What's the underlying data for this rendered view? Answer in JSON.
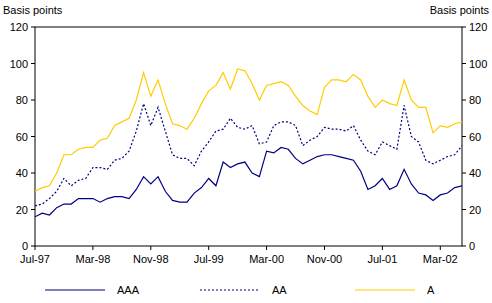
{
  "chart_data": {
    "type": "line",
    "y_label": "Basis points",
    "y2_label": "Basis points",
    "categories": [
      "Jul-97",
      null,
      null,
      null,
      null,
      null,
      null,
      null,
      "Mar-98",
      null,
      null,
      null,
      null,
      null,
      null,
      null,
      "Nov-98",
      null,
      null,
      null,
      null,
      null,
      null,
      null,
      "Jul-99",
      null,
      null,
      null,
      null,
      null,
      null,
      null,
      "Mar-00",
      null,
      null,
      null,
      null,
      null,
      null,
      null,
      "Nov-00",
      null,
      null,
      null,
      null,
      null,
      null,
      null,
      "Jul-01",
      null,
      null,
      null,
      null,
      null,
      null,
      null,
      "Mar-02",
      null,
      null,
      null
    ],
    "series": [
      {
        "name": "AAA",
        "color": "#000080",
        "line_style": "solid",
        "values": [
          16,
          18,
          17,
          21,
          23,
          23,
          26,
          26,
          26,
          24,
          26,
          27,
          27,
          26,
          31,
          38,
          34,
          38,
          30,
          25,
          24,
          24,
          29,
          32,
          37,
          33,
          46,
          43,
          45,
          46,
          40,
          38,
          52,
          51,
          54,
          53,
          48,
          45,
          47,
          49,
          50,
          50,
          49,
          48,
          47,
          41,
          31,
          33,
          37,
          31,
          33,
          42,
          34,
          29,
          28,
          25,
          28,
          29,
          32,
          33
        ]
      },
      {
        "name": "AA",
        "color": "#000080",
        "line_style": "dotted",
        "values": [
          22,
          23,
          26,
          30,
          37,
          33,
          36,
          37,
          43,
          43,
          42,
          47,
          48,
          52,
          63,
          78,
          66,
          76,
          63,
          50,
          48,
          48,
          44,
          52,
          57,
          63,
          64,
          70,
          65,
          64,
          66,
          56,
          57,
          66,
          68,
          68,
          66,
          55,
          58,
          60,
          65,
          64,
          64,
          63,
          66,
          58,
          52,
          50,
          57,
          55,
          53,
          77,
          60,
          57,
          47,
          45,
          47,
          49,
          50,
          55
        ]
      },
      {
        "name": "A",
        "color": "#FFCC00",
        "line_style": "solid",
        "values": [
          30,
          32,
          33,
          40,
          50,
          50,
          53,
          54,
          54,
          58,
          59,
          66,
          68,
          70,
          80,
          95,
          82,
          91,
          78,
          67,
          66,
          64,
          70,
          78,
          85,
          88,
          95,
          86,
          97,
          96,
          89,
          80,
          88,
          89,
          90,
          88,
          82,
          77,
          74,
          72,
          87,
          91,
          91,
          90,
          94,
          91,
          82,
          76,
          80,
          78,
          77,
          91,
          80,
          76,
          76,
          62,
          66,
          65,
          67,
          68
        ]
      }
    ],
    "ylim": [
      0,
      120
    ],
    "yticks": [
      0,
      20,
      40,
      60,
      80,
      100,
      120
    ],
    "y2lim": [
      0,
      120
    ],
    "y2ticks": [
      0,
      20,
      40,
      60,
      80,
      100,
      120
    ],
    "grid": false,
    "legend": "bottom"
  }
}
